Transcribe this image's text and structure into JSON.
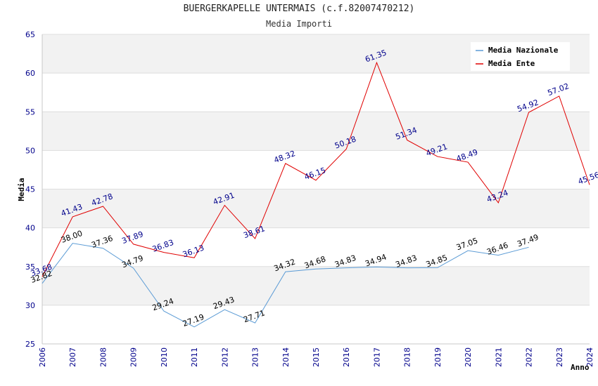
{
  "header": {
    "title": "BUERGERKAPELLE UNTERMAIS (c.f.82007470212)",
    "subtitle": "Media Importi"
  },
  "colors": {
    "nazionale": "#5b9bd5",
    "ente": "#e00000",
    "band": "#f2f2f2",
    "grid": "#dddddd"
  },
  "chart_data": {
    "type": "line",
    "title": "BUERGERKAPELLE UNTERMAIS (c.f.82007470212)",
    "subtitle": "Media Importi",
    "xlabel": "Anno",
    "ylabel": "Media",
    "ylim": [
      25,
      65
    ],
    "yticks": [
      25,
      30,
      35,
      40,
      45,
      50,
      55,
      60,
      65
    ],
    "x": [
      2006,
      2007,
      2008,
      2009,
      2010,
      2011,
      2012,
      2013,
      2014,
      2015,
      2016,
      2017,
      2018,
      2019,
      2020,
      2021,
      2022,
      2023,
      2024
    ],
    "legend_position": "top-right",
    "series": [
      {
        "name": "Media Nazionale",
        "values": [
          32.82,
          38.0,
          37.36,
          34.79,
          29.24,
          27.19,
          29.43,
          27.71,
          34.32,
          34.68,
          34.83,
          34.94,
          34.83,
          34.85,
          37.05,
          36.46,
          37.49,
          null,
          null
        ],
        "labels": [
          "32.82",
          "38.00",
          "37.36",
          "34.79",
          "29.24",
          "27.19",
          "29.43",
          "27.71",
          "34.32",
          "34.68",
          "34.83",
          "34.94",
          "34.83",
          "34.85",
          "37.05",
          "36.46",
          "37.49",
          "",
          ""
        ]
      },
      {
        "name": "Media Ente",
        "values": [
          33.68,
          41.43,
          42.78,
          37.89,
          36.83,
          36.13,
          42.91,
          38.61,
          48.32,
          46.15,
          50.18,
          61.35,
          51.34,
          49.21,
          48.49,
          43.24,
          54.92,
          57.02,
          45.56
        ],
        "labels": [
          "33.68",
          "41.43",
          "42.78",
          "37.89",
          "36.83",
          "36.13",
          "42.91",
          "38.61",
          "48.32",
          "46.15",
          "50.18",
          "61.35",
          "51.34",
          "49.21",
          "48.49",
          "43.24",
          "54.92",
          "57.02",
          "45.56"
        ]
      }
    ]
  }
}
